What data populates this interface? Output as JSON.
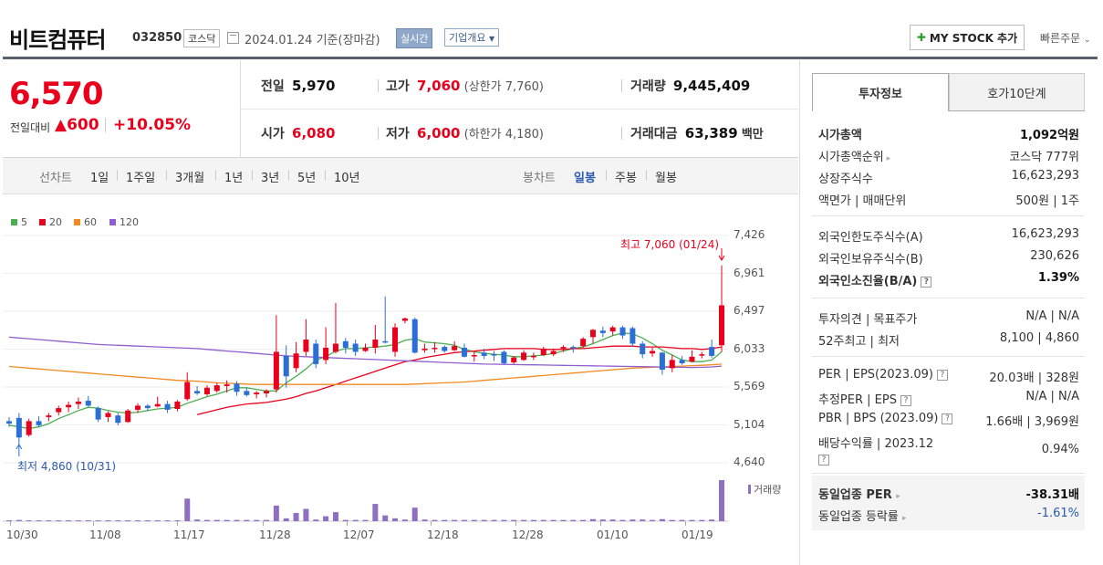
{
  "header": {
    "name": "비트컴퓨터",
    "code": "032850",
    "market": "코스닥",
    "date": "2024.01.24",
    "basis": "기준(장마감)",
    "realtime": "실시간",
    "company_info": "기업개요",
    "mystock": "MY STOCK 추가",
    "quick_order": "빠른주문"
  },
  "price": {
    "current": "6,570",
    "change_label": "전일대비",
    "change": "600",
    "change_pct": "+10.05%"
  },
  "quote": {
    "prev_label": "전일",
    "prev": "5,970",
    "high_label": "고가",
    "high": "7,060",
    "upper_limit": "(상한가 7,760)",
    "volume_label": "거래량",
    "volume": "9,445,409",
    "open_label": "시가",
    "open": "6,080",
    "low_label": "저가",
    "low": "6,000",
    "lower_limit": "(하한가 4,180)",
    "amount_label": "거래대금",
    "amount": "63,389",
    "amount_unit": "백만"
  },
  "chart_tabs": {
    "line_label": "선차트",
    "line_periods": [
      "1일",
      "1주일",
      "3개월",
      "1년",
      "3년",
      "5년",
      "10년"
    ],
    "candle_label": "봉차트",
    "candle_periods": [
      "일봉",
      "주봉",
      "월봉"
    ],
    "selected": "일봉"
  },
  "ma_legend": [
    {
      "label": "5",
      "color": "#4caf50"
    },
    {
      "label": "20",
      "color": "#e8001c"
    },
    {
      "label": "60",
      "color": "#f28a1f"
    },
    {
      "label": "120",
      "color": "#8f5fd0"
    }
  ],
  "annotations": {
    "high": "최고 7,060 (01/24)",
    "low": "최저 4,860 (10/31)",
    "volume_label": "거래량"
  },
  "colors": {
    "up": "#e8001c",
    "down": "#2b6fd6",
    "volume": "#8f6fc0"
  },
  "chart_data": {
    "type": "candlestick",
    "y_ticks": [
      "7,426",
      "6,961",
      "6,497",
      "6,033",
      "5,569",
      "5,104",
      "4,640"
    ],
    "ylim": [
      4640,
      7426
    ],
    "x_ticks": [
      "10/30",
      "11/08",
      "11/17",
      "11/28",
      "12/07",
      "12/18",
      "12/28",
      "01/10",
      "01/19"
    ],
    "candles": [
      {
        "o": 5150,
        "h": 5200,
        "l": 5080,
        "c": 5120
      },
      {
        "o": 5190,
        "h": 5250,
        "l": 4860,
        "c": 4950
      },
      {
        "o": 4980,
        "h": 5180,
        "l": 4960,
        "c": 5150
      },
      {
        "o": 5150,
        "h": 5210,
        "l": 5080,
        "c": 5100
      },
      {
        "o": 5200,
        "h": 5250,
        "l": 5150,
        "c": 5220
      },
      {
        "o": 5260,
        "h": 5340,
        "l": 5220,
        "c": 5310
      },
      {
        "o": 5320,
        "h": 5390,
        "l": 5260,
        "c": 5350
      },
      {
        "o": 5360,
        "h": 5440,
        "l": 5300,
        "c": 5390
      },
      {
        "o": 5400,
        "h": 5460,
        "l": 5330,
        "c": 5340
      },
      {
        "o": 5310,
        "h": 5330,
        "l": 5140,
        "c": 5170
      },
      {
        "o": 5200,
        "h": 5270,
        "l": 5140,
        "c": 5250
      },
      {
        "o": 5220,
        "h": 5250,
        "l": 5100,
        "c": 5130
      },
      {
        "o": 5140,
        "h": 5300,
        "l": 5130,
        "c": 5280
      },
      {
        "o": 5290,
        "h": 5370,
        "l": 5250,
        "c": 5340
      },
      {
        "o": 5340,
        "h": 5360,
        "l": 5280,
        "c": 5310
      },
      {
        "o": 5330,
        "h": 5450,
        "l": 5320,
        "c": 5360
      },
      {
        "o": 5360,
        "h": 5400,
        "l": 5250,
        "c": 5290
      },
      {
        "o": 5300,
        "h": 5410,
        "l": 5270,
        "c": 5390
      },
      {
        "o": 5420,
        "h": 5750,
        "l": 5400,
        "c": 5630
      },
      {
        "o": 5520,
        "h": 5580,
        "l": 5470,
        "c": 5490
      },
      {
        "o": 5480,
        "h": 5590,
        "l": 5460,
        "c": 5560
      },
      {
        "o": 5520,
        "h": 5620,
        "l": 5500,
        "c": 5590
      },
      {
        "o": 5580,
        "h": 5650,
        "l": 5500,
        "c": 5600
      },
      {
        "o": 5610,
        "h": 5640,
        "l": 5460,
        "c": 5510
      },
      {
        "o": 5520,
        "h": 5560,
        "l": 5450,
        "c": 5470
      },
      {
        "o": 5480,
        "h": 5520,
        "l": 5430,
        "c": 5500
      },
      {
        "o": 5490,
        "h": 5540,
        "l": 5440,
        "c": 5520
      },
      {
        "o": 5540,
        "h": 6450,
        "l": 5500,
        "c": 6000
      },
      {
        "o": 5950,
        "h": 6080,
        "l": 5560,
        "c": 5700
      },
      {
        "o": 5800,
        "h": 6120,
        "l": 5750,
        "c": 5980
      },
      {
        "o": 6000,
        "h": 6400,
        "l": 5950,
        "c": 6150
      },
      {
        "o": 6100,
        "h": 6150,
        "l": 5800,
        "c": 5850
      },
      {
        "o": 5900,
        "h": 6300,
        "l": 5850,
        "c": 6050
      },
      {
        "o": 6000,
        "h": 6600,
        "l": 5980,
        "c": 6100
      },
      {
        "o": 6130,
        "h": 6170,
        "l": 5980,
        "c": 6050
      },
      {
        "o": 6100,
        "h": 6150,
        "l": 5950,
        "c": 6000
      },
      {
        "o": 6010,
        "h": 6100,
        "l": 6000,
        "c": 6050
      },
      {
        "o": 6050,
        "h": 6330,
        "l": 5980,
        "c": 6150
      },
      {
        "o": 6130,
        "h": 6680,
        "l": 6100,
        "c": 6120
      },
      {
        "o": 6000,
        "h": 6350,
        "l": 5940,
        "c": 6300
      },
      {
        "o": 6380,
        "h": 6420,
        "l": 6350,
        "c": 6410
      },
      {
        "o": 6400,
        "h": 6420,
        "l": 5980,
        "c": 5990
      },
      {
        "o": 6020,
        "h": 6100,
        "l": 5990,
        "c": 6040
      },
      {
        "o": 6040,
        "h": 6120,
        "l": 5990,
        "c": 6050
      },
      {
        "o": 6060,
        "h": 6080,
        "l": 5990,
        "c": 6010
      },
      {
        "o": 6020,
        "h": 6130,
        "l": 6010,
        "c": 6070
      },
      {
        "o": 6050,
        "h": 6100,
        "l": 5930,
        "c": 5940
      },
      {
        "o": 5960,
        "h": 6000,
        "l": 5880,
        "c": 5960
      },
      {
        "o": 5990,
        "h": 6040,
        "l": 5910,
        "c": 5950
      },
      {
        "o": 5970,
        "h": 6010,
        "l": 5890,
        "c": 5960
      },
      {
        "o": 6000,
        "h": 6020,
        "l": 5840,
        "c": 5860
      },
      {
        "o": 5870,
        "h": 5950,
        "l": 5850,
        "c": 5930
      },
      {
        "o": 5900,
        "h": 6020,
        "l": 5890,
        "c": 5990
      },
      {
        "o": 5950,
        "h": 5990,
        "l": 5900,
        "c": 5950
      },
      {
        "o": 5960,
        "h": 6060,
        "l": 5950,
        "c": 6040
      },
      {
        "o": 5970,
        "h": 6040,
        "l": 5950,
        "c": 6010
      },
      {
        "o": 6040,
        "h": 6080,
        "l": 6000,
        "c": 6060
      },
      {
        "o": 6060,
        "h": 6080,
        "l": 5990,
        "c": 6050
      },
      {
        "o": 6070,
        "h": 6180,
        "l": 6050,
        "c": 6160
      },
      {
        "o": 6180,
        "h": 6280,
        "l": 6100,
        "c": 6270
      },
      {
        "o": 6260,
        "h": 6310,
        "l": 6180,
        "c": 6230
      },
      {
        "o": 6250,
        "h": 6320,
        "l": 6200,
        "c": 6300
      },
      {
        "o": 6300,
        "h": 6320,
        "l": 6160,
        "c": 6200
      },
      {
        "o": 6290,
        "h": 6310,
        "l": 6060,
        "c": 6100
      },
      {
        "o": 6100,
        "h": 6130,
        "l": 5920,
        "c": 5970
      },
      {
        "o": 5980,
        "h": 6050,
        "l": 5940,
        "c": 6010
      },
      {
        "o": 5990,
        "h": 6000,
        "l": 5720,
        "c": 5780
      },
      {
        "o": 5800,
        "h": 5960,
        "l": 5750,
        "c": 5900
      },
      {
        "o": 5900,
        "h": 5950,
        "l": 5840,
        "c": 5860
      },
      {
        "o": 5880,
        "h": 6020,
        "l": 5870,
        "c": 5940
      },
      {
        "o": 5960,
        "h": 6000,
        "l": 5920,
        "c": 5970
      },
      {
        "o": 6060,
        "h": 6150,
        "l": 5930,
        "c": 5950
      },
      {
        "o": 6080,
        "h": 7060,
        "l": 6000,
        "c": 6570
      }
    ],
    "ma5": [
      5100,
      5080,
      5060,
      5080,
      5120,
      5180,
      5230,
      5280,
      5320,
      5310,
      5280,
      5260,
      5250,
      5260,
      5280,
      5300,
      5310,
      5320,
      5370,
      5410,
      5450,
      5480,
      5520,
      5560,
      5560,
      5540,
      5520,
      5520,
      5620,
      5700,
      5790,
      5900,
      5940,
      6010,
      6040,
      6040,
      6050,
      6060,
      6070,
      6090,
      6140,
      6160,
      6120,
      6110,
      6100,
      6080,
      6030,
      6000,
      5980,
      5970,
      5960,
      5940,
      5940,
      5950,
      5960,
      5980,
      6010,
      6040,
      6060,
      6100,
      6150,
      6200,
      6230,
      6220,
      6170,
      6100,
      6020,
      5960,
      5900,
      5880,
      5880,
      5900,
      6000
    ],
    "ma20": [
      null,
      null,
      null,
      null,
      null,
      null,
      null,
      null,
      null,
      null,
      null,
      null,
      null,
      null,
      null,
      null,
      null,
      null,
      null,
      5230,
      5260,
      5290,
      5320,
      5340,
      5360,
      5370,
      5380,
      5400,
      5420,
      5450,
      5490,
      5520,
      5560,
      5600,
      5640,
      5680,
      5720,
      5760,
      5800,
      5840,
      5880,
      5900,
      5930,
      5950,
      5970,
      5990,
      6000,
      6010,
      6020,
      6030,
      6040,
      6040,
      6040,
      6040,
      6030,
      6030,
      6030,
      6040,
      6040,
      6050,
      6060,
      6070,
      6070,
      6070,
      6060,
      6060,
      6060,
      6050,
      6040,
      6040,
      6030,
      6040,
      6060
    ],
    "ma60": [
      5820,
      5810,
      5800,
      5790,
      5780,
      5770,
      5760,
      5750,
      5740,
      5730,
      5720,
      5710,
      5700,
      5690,
      5680,
      5670,
      5660,
      5650,
      5645,
      5640,
      5630,
      5620,
      5615,
      5610,
      5605,
      5600,
      5600,
      5600,
      5600,
      5600,
      5600,
      5600,
      5600,
      5600,
      5600,
      5600,
      5600,
      5600,
      5600,
      5600,
      5600,
      5605,
      5610,
      5615,
      5620,
      5625,
      5630,
      5640,
      5650,
      5660,
      5670,
      5680,
      5690,
      5700,
      5710,
      5720,
      5730,
      5740,
      5750,
      5760,
      5770,
      5780,
      5790,
      5800,
      5805,
      5810,
      5815,
      5820,
      5825,
      5830,
      5835,
      5840,
      5850
    ],
    "ma120": [
      6180,
      6170,
      6160,
      6150,
      6140,
      6130,
      6120,
      6110,
      6100,
      6090,
      6085,
      6080,
      6075,
      6070,
      6065,
      6060,
      6055,
      6050,
      6045,
      6040,
      6030,
      6020,
      6010,
      6000,
      5990,
      5980,
      5970,
      5960,
      5950,
      5945,
      5940,
      5935,
      5930,
      5925,
      5920,
      5915,
      5910,
      5905,
      5900,
      5895,
      5890,
      5885,
      5880,
      5875,
      5870,
      5865,
      5860,
      5855,
      5850,
      5848,
      5846,
      5844,
      5842,
      5840,
      5838,
      5836,
      5834,
      5832,
      5830,
      5828,
      5826,
      5824,
      5822,
      5820,
      5818,
      5816,
      5814,
      5812,
      5810,
      5808,
      5810,
      5815,
      5825
    ],
    "volume": [
      0.02,
      0.03,
      0.02,
      0.02,
      0.02,
      0.02,
      0.02,
      0.02,
      0.02,
      0.02,
      0.02,
      0.02,
      0.02,
      0.02,
      0.02,
      0.02,
      0.02,
      0.02,
      0.55,
      0.04,
      0.03,
      0.03,
      0.03,
      0.03,
      0.03,
      0.03,
      0.03,
      0.38,
      0.07,
      0.2,
      0.3,
      0.04,
      0.12,
      0.22,
      0.03,
      0.03,
      0.03,
      0.42,
      0.14,
      0.07,
      0.04,
      0.33,
      0.04,
      0.03,
      0.03,
      0.03,
      0.03,
      0.03,
      0.03,
      0.03,
      0.03,
      0.03,
      0.03,
      0.03,
      0.03,
      0.03,
      0.03,
      0.03,
      0.03,
      0.05,
      0.04,
      0.04,
      0.03,
      0.04,
      0.04,
      0.03,
      0.05,
      0.03,
      0.03,
      0.03,
      0.03,
      0.04,
      1.0
    ]
  },
  "right_panel": {
    "tab_invest": "투자정보",
    "tab_hoga": "호가10단계",
    "rows1": [
      {
        "label": "시가총액",
        "value": "1,092억원",
        "bold": true
      },
      {
        "label": "시가총액순위",
        "value": "코스닥 777위",
        "arrow": true
      },
      {
        "label": "상장주식수",
        "value": "16,623,293"
      },
      {
        "label": "액면가 | 매매단위",
        "value": "500원 | 1주"
      }
    ],
    "rows2": [
      {
        "label": "외국인한도주식수(A)",
        "value": "16,623,293"
      },
      {
        "label": "외국인보유주식수(B)",
        "value": "230,626"
      },
      {
        "label": "외국인소진율(B/A)",
        "value": "1.39%",
        "bold": true,
        "help": true
      }
    ],
    "rows3": [
      {
        "label": "투자의견 | 목표주가",
        "value": "N/A | N/A"
      },
      {
        "label": "52주최고 | 최저",
        "value": "8,100 | 4,860"
      }
    ],
    "rows4": [
      {
        "label": "PER | EPS(2023.09)",
        "value": "20.03배 | 328원",
        "help": true
      },
      {
        "label": "추정PER | EPS",
        "value": "N/A | N/A",
        "help": true
      },
      {
        "label": "PBR | BPS (2023.09)",
        "value": "1.66배 | 3,969원",
        "help": true
      },
      {
        "label": "배당수익률 | 2023.12",
        "value": "0.94%",
        "help": true
      }
    ],
    "sector_per_label": "동일업종 PER",
    "sector_per": "-38.31배",
    "sector_rate_label": "동일업종 등락률",
    "sector_rate": "-1.61%"
  }
}
